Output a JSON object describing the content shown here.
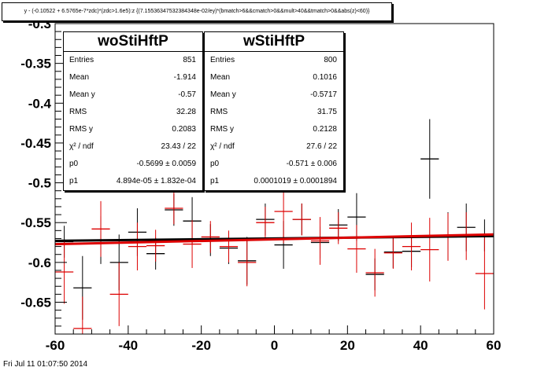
{
  "title": "y - (-0.10522 + 6.5765e-7*zdc)*(zdc>1.6e5):z {(7.15536347532384348e-02/ey)*(bmatch>6&&cmatch>0&&mult>40&&tmatch>0&&abs(z)<60)}",
  "footer": "Fri Jul 11 01:07:50 2014",
  "stat_boxes": [
    {
      "name": "woStiHftP",
      "rows": [
        {
          "label": "Entries",
          "value": "851"
        },
        {
          "label": "Mean",
          "value": "-1.914"
        },
        {
          "label": "Mean y",
          "value": "-0.57"
        },
        {
          "label": "RMS",
          "value": "32.28"
        },
        {
          "label": "RMS y",
          "value": "0.2083"
        },
        {
          "label": "χ² / ndf",
          "value": "23.43 / 22"
        },
        {
          "label": "p0",
          "value": "-0.5699  ± 0.0059"
        },
        {
          "label": "p1",
          "value": "4.894e-05  ± 1.832e-04"
        }
      ]
    },
    {
      "name": "wStiHftP",
      "rows": [
        {
          "label": "Entries",
          "value": "800"
        },
        {
          "label": "Mean",
          "value": "0.1016"
        },
        {
          "label": "Mean y",
          "value": "-0.5717"
        },
        {
          "label": "RMS",
          "value": "31.75"
        },
        {
          "label": "RMS y",
          "value": "0.2128"
        },
        {
          "label": "χ² / ndf",
          "value": "27.6 / 22"
        },
        {
          "label": "p0",
          "value": "-0.571 ± 0.006"
        },
        {
          "label": "p1",
          "value": "0.0001019 ± 0.0001894"
        }
      ]
    }
  ],
  "chart_data": {
    "type": "scatter",
    "xlim": [
      -60,
      60
    ],
    "ylim": [
      -0.69,
      -0.3
    ],
    "x_ticks": [
      -60,
      -40,
      -20,
      0,
      20,
      40,
      60
    ],
    "x_tick_labels": [
      "-60",
      "-40",
      "-20",
      "0",
      "20",
      "40",
      "60"
    ],
    "y_ticks": [
      -0.65,
      -0.6,
      -0.55,
      -0.5,
      -0.45,
      -0.4,
      -0.35,
      -0.3
    ],
    "y_tick_labels": [
      "-0.65",
      "-0.6",
      "-0.55",
      "-0.5",
      "-0.45",
      "-0.4",
      "-0.35",
      "-0.3"
    ],
    "grid": false,
    "bin_half_width": 2.5,
    "series": [
      {
        "name": "woStiHftP",
        "color": "#000000",
        "points": [
          {
            "x": -57.5,
            "y": -0.574,
            "err": 0.02
          },
          {
            "x": -52.5,
            "y": -0.632,
            "err": 0.04
          },
          {
            "x": -47.5,
            "y": -0.572,
            "err": 0.03
          },
          {
            "x": -42.5,
            "y": -0.6,
            "err": 0.035
          },
          {
            "x": -37.5,
            "y": -0.562,
            "err": 0.03
          },
          {
            "x": -32.5,
            "y": -0.589,
            "err": 0.02
          },
          {
            "x": -27.5,
            "y": -0.534,
            "err": 0.02
          },
          {
            "x": -22.5,
            "y": -0.548,
            "err": 0.03
          },
          {
            "x": -17.5,
            "y": -0.572,
            "err": 0.02
          },
          {
            "x": -12.5,
            "y": -0.582,
            "err": 0.02
          },
          {
            "x": -7.5,
            "y": -0.598,
            "err": 0.03
          },
          {
            "x": -2.5,
            "y": -0.546,
            "err": 0.02
          },
          {
            "x": 2.5,
            "y": -0.578,
            "err": 0.03
          },
          {
            "x": 7.5,
            "y": -0.546,
            "err": 0.02
          },
          {
            "x": 12.5,
            "y": -0.575,
            "err": 0.02
          },
          {
            "x": 17.5,
            "y": -0.553,
            "err": 0.02
          },
          {
            "x": 22.5,
            "y": -0.543,
            "err": 0.03
          },
          {
            "x": 27.5,
            "y": -0.615,
            "err": 0.02
          },
          {
            "x": 32.5,
            "y": -0.587,
            "err": 0.02
          },
          {
            "x": 37.5,
            "y": -0.586,
            "err": 0.02
          },
          {
            "x": 42.5,
            "y": -0.47,
            "err": 0.05
          },
          {
            "x": 47.5,
            "y": -0.567,
            "err": 0.03
          },
          {
            "x": 52.5,
            "y": -0.556,
            "err": 0.03
          },
          {
            "x": 57.5,
            "y": -0.566,
            "err": 0.02
          }
        ],
        "fit": {
          "p0": -0.5699,
          "p1": 4.894e-05
        }
      },
      {
        "name": "wStiHftP",
        "color": "#dd0000",
        "points": [
          {
            "x": -57.5,
            "y": -0.612,
            "err": 0.04
          },
          {
            "x": -52.5,
            "y": -0.683,
            "err": 0.04
          },
          {
            "x": -47.5,
            "y": -0.558,
            "err": 0.035
          },
          {
            "x": -42.5,
            "y": -0.64,
            "err": 0.04
          },
          {
            "x": -37.5,
            "y": -0.58,
            "err": 0.03
          },
          {
            "x": -32.5,
            "y": -0.579,
            "err": 0.02
          },
          {
            "x": -27.5,
            "y": -0.532,
            "err": 0.02
          },
          {
            "x": -22.5,
            "y": -0.577,
            "err": 0.03
          },
          {
            "x": -17.5,
            "y": -0.568,
            "err": 0.02
          },
          {
            "x": -12.5,
            "y": -0.58,
            "err": 0.02
          },
          {
            "x": -7.5,
            "y": -0.6,
            "err": 0.03
          },
          {
            "x": -2.5,
            "y": -0.55,
            "err": 0.02
          },
          {
            "x": 2.5,
            "y": -0.536,
            "err": 0.04
          },
          {
            "x": 7.5,
            "y": -0.546,
            "err": 0.02
          },
          {
            "x": 12.5,
            "y": -0.573,
            "err": 0.03
          },
          {
            "x": 17.5,
            "y": -0.557,
            "err": 0.02
          },
          {
            "x": 22.5,
            "y": -0.583,
            "err": 0.03
          },
          {
            "x": 27.5,
            "y": -0.613,
            "err": 0.03
          },
          {
            "x": 32.5,
            "y": -0.588,
            "err": 0.02
          },
          {
            "x": 37.5,
            "y": -0.58,
            "err": 0.03
          },
          {
            "x": 42.5,
            "y": -0.584,
            "err": 0.04
          },
          {
            "x": 47.5,
            "y": -0.568,
            "err": 0.03
          },
          {
            "x": 52.5,
            "y": -0.567,
            "err": 0.03
          },
          {
            "x": 57.5,
            "y": -0.614,
            "err": 0.045
          }
        ],
        "fit": {
          "p0": -0.571,
          "p1": 0.0001019
        }
      }
    ]
  }
}
